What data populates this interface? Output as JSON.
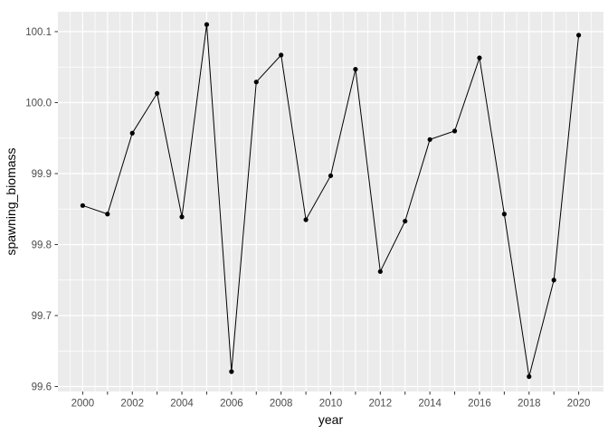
{
  "chart_data": {
    "type": "line",
    "title": "",
    "xlabel": "year",
    "ylabel": "spawning_biomass",
    "x": [
      2000,
      2001,
      2002,
      2003,
      2004,
      2005,
      2006,
      2007,
      2008,
      2009,
      2010,
      2011,
      2012,
      2013,
      2014,
      2015,
      2016,
      2017,
      2018,
      2019,
      2020
    ],
    "y": [
      99.855,
      99.843,
      99.957,
      100.013,
      99.839,
      100.11,
      99.621,
      100.029,
      100.067,
      99.835,
      99.897,
      100.047,
      99.762,
      99.833,
      99.948,
      99.96,
      100.063,
      99.843,
      99.614,
      99.75,
      100.095
    ],
    "xlim": [
      1999,
      2021
    ],
    "ylim": [
      99.593,
      100.128
    ],
    "x_axis": {
      "ticks": [
        2000,
        2001,
        2002,
        2003,
        2004,
        2005,
        2006,
        2007,
        2008,
        2009,
        2010,
        2011,
        2012,
        2013,
        2014,
        2015,
        2016,
        2017,
        2018,
        2019,
        2020
      ],
      "labels": [
        {
          "pos": 2000,
          "text": "2000"
        },
        {
          "pos": 2002,
          "text": "2002"
        },
        {
          "pos": 2004,
          "text": "2004"
        },
        {
          "pos": 2006,
          "text": "2006"
        },
        {
          "pos": 2008,
          "text": "2008"
        },
        {
          "pos": 2010,
          "text": "2010"
        },
        {
          "pos": 2012,
          "text": "2012"
        },
        {
          "pos": 2014,
          "text": "2014"
        },
        {
          "pos": 2016,
          "text": "2016"
        },
        {
          "pos": 2018,
          "text": "2018"
        },
        {
          "pos": 2020,
          "text": "2020"
        }
      ]
    },
    "y_axis": {
      "ticks": [
        99.6,
        99.7,
        99.8,
        99.9,
        100.0,
        100.1
      ],
      "labels": [
        "99.6",
        "99.7",
        "99.8",
        "99.9",
        "100.0",
        "100.1"
      ]
    },
    "grid": "major and minor, white on grey panel",
    "legend": "none",
    "theme": {
      "panel_bg": "#EBEBEB",
      "grid_color": "#FFFFFF",
      "line_color": "#000000",
      "point_color": "#000000",
      "tick_mark_color": "#333333",
      "tick_label_color": "#4D4D4D",
      "axis_title_color": "#000000"
    }
  }
}
